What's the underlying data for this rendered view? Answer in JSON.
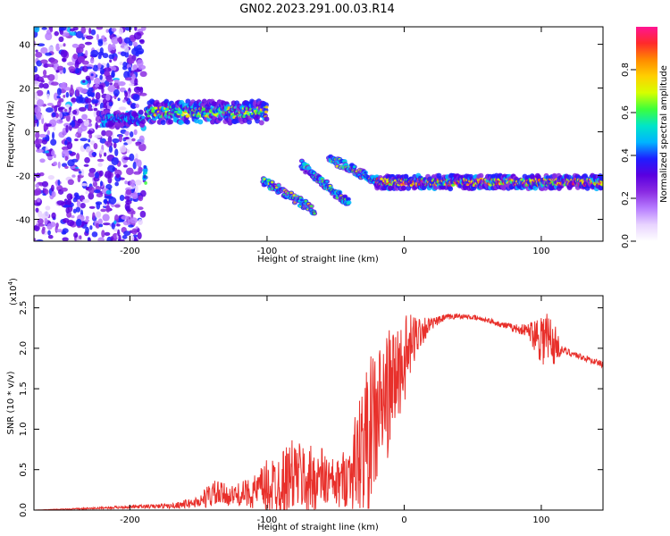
{
  "title": "GN02.2023.291.00.03.R14",
  "colors": {
    "snr_line": "#e8302b",
    "colormap": [
      "#ffffff",
      "#e8d4ff",
      "#b77cff",
      "#8a2be2",
      "#5a00e0",
      "#1e1eff",
      "#00b4ff",
      "#00e5c8",
      "#3cff3c",
      "#d6ff00",
      "#ffd000",
      "#ff8a00",
      "#ff2a2a",
      "#ff1493"
    ]
  },
  "chart_data": [
    {
      "type": "heatmap",
      "name": "spectrogram",
      "xlabel": "Height of straight line (km)",
      "ylabel": "Frequency (Hz)",
      "xlim": [
        -270,
        145
      ],
      "ylim": [
        -50,
        48
      ],
      "x_ticks": [
        -200,
        -100,
        0,
        100
      ],
      "y_ticks": [
        -40,
        -20,
        0,
        20,
        40
      ],
      "colorbar": {
        "label": "Normalized spectral amplitude",
        "range": [
          0.0,
          1.0
        ],
        "ticks": [
          "0.0",
          "0.2",
          "0.4",
          "0.6",
          "0.8"
        ]
      },
      "features": [
        {
          "desc": "scattered noise",
          "x_range": [
            -270,
            -190
          ],
          "y_range": [
            -50,
            48
          ],
          "amplitude": 0.35
        },
        {
          "desc": "band",
          "x_range": [
            -220,
            -190
          ],
          "center_freq": 6,
          "width": 6,
          "amplitude": 0.55
        },
        {
          "desc": "band",
          "x_range": [
            -188,
            -100
          ],
          "center_freq": 9,
          "width": 10,
          "amplitude": 0.75
        },
        {
          "desc": "spot",
          "x": -189,
          "center_freq": -20,
          "amplitude": 0.6
        },
        {
          "desc": "dispersive arc",
          "x_range": [
            -103,
            -65
          ],
          "freq_range": [
            -22,
            -36
          ],
          "amplitude": 0.7
        },
        {
          "desc": "dispersive arc",
          "x_range": [
            -75,
            -40
          ],
          "freq_range": [
            -15,
            -33
          ],
          "amplitude": 0.65
        },
        {
          "desc": "dispersive arc",
          "x_range": [
            -55,
            -15
          ],
          "freq_range": [
            -12,
            -24
          ],
          "amplitude": 0.7
        },
        {
          "desc": "steady band",
          "x_range": [
            -20,
            145
          ],
          "center_freq": -23,
          "width": 6,
          "amplitude": 0.95
        }
      ]
    },
    {
      "type": "line",
      "name": "snr",
      "xlabel": "Height of straight line (km)",
      "ylabel": "SNR (10 * v/v)",
      "scale_note": "(x10",
      "scale_exp": "4",
      "scale_close": ")",
      "xlim": [
        -270,
        145
      ],
      "ylim": [
        0.0,
        2.65
      ],
      "x_ticks": [
        -200,
        -100,
        0,
        100
      ],
      "y_ticks": [
        "0.0",
        "0.5",
        "1.0",
        "1.5",
        "2.0",
        "2.5"
      ],
      "envelope": {
        "x": [
          -270,
          -230,
          -200,
          -170,
          -150,
          -140,
          -125,
          -110,
          -100,
          -90,
          -80,
          -70,
          -60,
          -50,
          -40,
          -30,
          -20,
          -10,
          0,
          10,
          20,
          30,
          40,
          50,
          60,
          70,
          80,
          90,
          100,
          105,
          110,
          115,
          125,
          135,
          145
        ],
        "y": [
          0.0,
          0.02,
          0.04,
          0.05,
          0.1,
          0.2,
          0.18,
          0.22,
          0.28,
          0.35,
          0.45,
          0.35,
          0.4,
          0.3,
          0.45,
          0.75,
          1.15,
          1.5,
          1.85,
          2.2,
          2.3,
          2.38,
          2.4,
          2.38,
          2.35,
          2.3,
          2.25,
          2.22,
          2.15,
          2.1,
          2.05,
          1.98,
          1.92,
          1.86,
          1.8
        ],
        "amp": [
          0.0,
          0.01,
          0.02,
          0.03,
          0.07,
          0.18,
          0.12,
          0.2,
          0.35,
          0.4,
          0.45,
          0.45,
          0.4,
          0.3,
          0.4,
          0.9,
          0.95,
          0.75,
          0.55,
          0.25,
          0.07,
          0.04,
          0.03,
          0.03,
          0.03,
          0.04,
          0.05,
          0.08,
          0.35,
          0.45,
          0.25,
          0.05,
          0.04,
          0.04,
          0.04
        ]
      }
    }
  ]
}
